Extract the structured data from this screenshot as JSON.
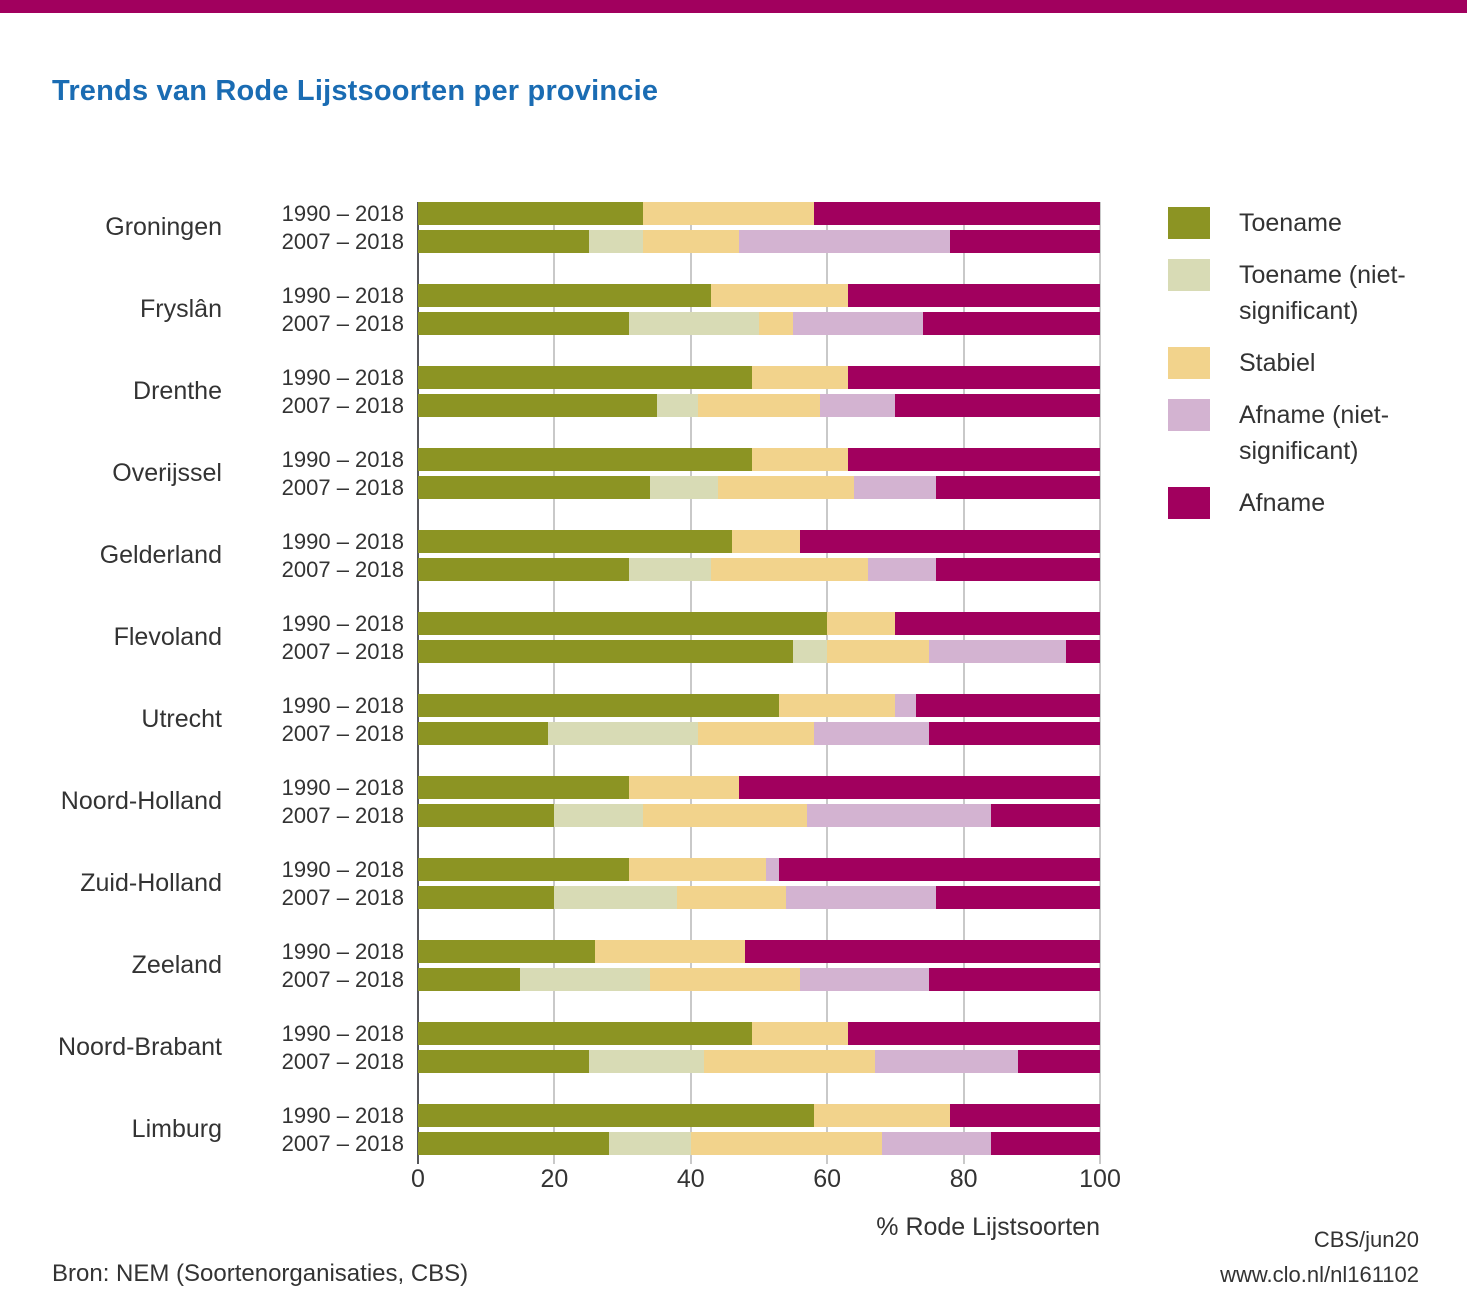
{
  "page": {
    "title": "Trends van Rode Lijstsoorten per provincie",
    "title_color": "#1a6cb3",
    "top_bar_color": "#a1005e",
    "source": "Bron: NEM (Soortenorganisaties, CBS)",
    "credit_line1": "CBS/jun20",
    "credit_line2": "www.clo.nl/nl161102"
  },
  "chart_data": {
    "type": "bar",
    "orientation": "horizontal",
    "stacked": true,
    "title": "Trends van Rode Lijstsoorten per provincie",
    "xlabel": "% Rode Lijstsoorten",
    "xlim": [
      0,
      100
    ],
    "x_ticks": [
      0,
      20,
      40,
      60,
      80,
      100
    ],
    "grid": true,
    "legend_position": "right",
    "gridline_color": "#c9c9c9",
    "axis_line_color": "#55565a",
    "series_names": [
      "Toename",
      "Toename (niet-significant)",
      "Stabiel",
      "Afname (niet-significant)",
      "Afname"
    ],
    "series_keys": [
      "toename",
      "toename-niet-significant",
      "stabiel",
      "afname-niet-significant",
      "afname"
    ],
    "series_colors": [
      "#8c9423",
      "#d8dbb5",
      "#f2d38c",
      "#d3b3d1",
      "#a1005e"
    ],
    "periods": [
      "1990 – 2018",
      "2007 – 2018"
    ],
    "provinces": [
      {
        "name": "Groningen",
        "rows": [
          [
            33,
            0,
            25,
            0,
            42
          ],
          [
            25,
            8,
            14,
            31,
            22
          ]
        ]
      },
      {
        "name": "Fryslân",
        "rows": [
          [
            43,
            0,
            20,
            0,
            37
          ],
          [
            31,
            19,
            5,
            19,
            26
          ]
        ]
      },
      {
        "name": "Drenthe",
        "rows": [
          [
            49,
            0,
            14,
            0,
            37
          ],
          [
            35,
            6,
            18,
            11,
            30
          ]
        ]
      },
      {
        "name": "Overijssel",
        "rows": [
          [
            49,
            0,
            14,
            0,
            37
          ],
          [
            34,
            10,
            20,
            12,
            24
          ]
        ]
      },
      {
        "name": "Gelderland",
        "rows": [
          [
            46,
            0,
            10,
            0,
            44
          ],
          [
            31,
            12,
            23,
            10,
            24
          ]
        ]
      },
      {
        "name": "Flevoland",
        "rows": [
          [
            60,
            0,
            10,
            0,
            30
          ],
          [
            55,
            5,
            15,
            20,
            5
          ]
        ]
      },
      {
        "name": "Utrecht",
        "rows": [
          [
            53,
            0,
            17,
            3,
            27
          ],
          [
            19,
            22,
            17,
            17,
            25
          ]
        ]
      },
      {
        "name": "Noord-Holland",
        "rows": [
          [
            31,
            0,
            16,
            0,
            53
          ],
          [
            20,
            13,
            24,
            27,
            16
          ]
        ]
      },
      {
        "name": "Zuid-Holland",
        "rows": [
          [
            31,
            0,
            20,
            2,
            47
          ],
          [
            20,
            18,
            16,
            22,
            24
          ]
        ]
      },
      {
        "name": "Zeeland",
        "rows": [
          [
            26,
            0,
            22,
            0,
            52
          ],
          [
            15,
            19,
            22,
            19,
            25
          ]
        ]
      },
      {
        "name": "Noord-Brabant",
        "rows": [
          [
            49,
            0,
            14,
            0,
            37
          ],
          [
            25,
            17,
            25,
            21,
            12
          ]
        ]
      },
      {
        "name": "Limburg",
        "rows": [
          [
            58,
            0,
            20,
            0,
            22
          ],
          [
            28,
            12,
            28,
            16,
            16
          ]
        ]
      }
    ]
  },
  "legend": {
    "items": [
      {
        "key": "toename",
        "label": "Toename",
        "color": "#8c9423"
      },
      {
        "key": "toename-niet-significant",
        "label": "Toename (niet-significant)",
        "color": "#d8dbb5"
      },
      {
        "key": "stabiel",
        "label": "Stabiel",
        "color": "#f2d38c"
      },
      {
        "key": "afname-niet-significant",
        "label": "Afname (niet-significant)",
        "color": "#d3b3d1"
      },
      {
        "key": "afname",
        "label": "Afname",
        "color": "#a1005e"
      }
    ]
  }
}
